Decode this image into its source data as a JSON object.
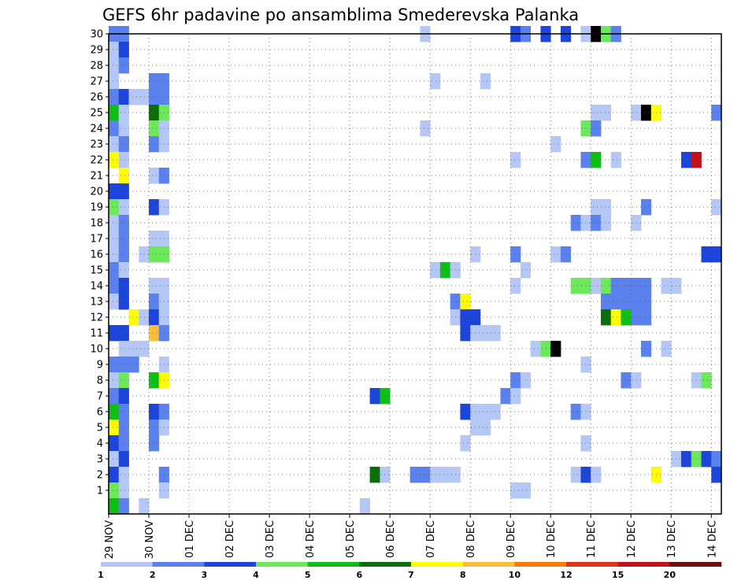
{
  "chart_data": {
    "type": "heatmap",
    "title": "GEFS 6hr padavine po ansamblima Smederevska Palanka",
    "xlabel": "",
    "ylabel": "",
    "x_tick_labels": [
      "29 NOV",
      "30 NOV",
      "01 DEC",
      "02 DEC",
      "03 DEC",
      "04 DEC",
      "05 DEC",
      "06 DEC",
      "07 DEC",
      "08 DEC",
      "09 DEC",
      "10 DEC",
      "11 DEC",
      "12 DEC",
      "13 DEC",
      "14 DEC"
    ],
    "y_tick_labels": [
      "1",
      "2",
      "3",
      "4",
      "5",
      "6",
      "7",
      "8",
      "9",
      "10",
      "11",
      "12",
      "13",
      "14",
      "15",
      "16",
      "17",
      "18",
      "19",
      "20",
      "21",
      "22",
      "23",
      "24",
      "25",
      "26",
      "27",
      "28",
      "29",
      "30"
    ],
    "x_range_steps": [
      0,
      61
    ],
    "y_range_members": [
      0,
      30
    ],
    "steps_per_day": 4,
    "grid": "dotted",
    "legend": {
      "placement": "bottom",
      "labels": [
        "1",
        "2",
        "3",
        "4",
        "5",
        "6",
        "7",
        "8",
        "10",
        "12",
        "15",
        "20"
      ],
      "colors": [
        "#b5c7f5",
        "#5b82ec",
        "#1d45dc",
        "#6de85a",
        "#0fbe16",
        "#0b6e0b",
        "#fcfc09",
        "#fcbd3c",
        "#fc7c0a",
        "#e03416",
        "#c0101c",
        "#6e0a0a"
      ]
    },
    "cells": [
      [
        0,
        30,
        2
      ],
      [
        1,
        30,
        2
      ],
      [
        31,
        30,
        1
      ],
      [
        40,
        30,
        3
      ],
      [
        41,
        30,
        2
      ],
      [
        43,
        30,
        3
      ],
      [
        45,
        30,
        3
      ],
      [
        47,
        30,
        1
      ],
      [
        48,
        30,
        14
      ],
      [
        49,
        30,
        4
      ],
      [
        50,
        30,
        2
      ],
      [
        0,
        29,
        1
      ],
      [
        1,
        29,
        3
      ],
      [
        0,
        28,
        1
      ],
      [
        1,
        28,
        2
      ],
      [
        0,
        27,
        1
      ],
      [
        4,
        27,
        2
      ],
      [
        5,
        27,
        2
      ],
      [
        32,
        27,
        1
      ],
      [
        37,
        27,
        1
      ],
      [
        0,
        26,
        2
      ],
      [
        1,
        26,
        3
      ],
      [
        2,
        26,
        1
      ],
      [
        3,
        26,
        1
      ],
      [
        4,
        26,
        2
      ],
      [
        5,
        26,
        2
      ],
      [
        0,
        25,
        5
      ],
      [
        1,
        25,
        1
      ],
      [
        4,
        25,
        6
      ],
      [
        5,
        25,
        4
      ],
      [
        48,
        25,
        1
      ],
      [
        49,
        25,
        1
      ],
      [
        52,
        25,
        1
      ],
      [
        53,
        25,
        13
      ],
      [
        54,
        25,
        7
      ],
      [
        60,
        25,
        2
      ],
      [
        0,
        24,
        2
      ],
      [
        1,
        24,
        1
      ],
      [
        4,
        24,
        4
      ],
      [
        5,
        24,
        1
      ],
      [
        31,
        24,
        1
      ],
      [
        47,
        24,
        4
      ],
      [
        48,
        24,
        2
      ],
      [
        0,
        23,
        1
      ],
      [
        1,
        23,
        2
      ],
      [
        4,
        23,
        2
      ],
      [
        5,
        23,
        1
      ],
      [
        44,
        23,
        1
      ],
      [
        0,
        22,
        7
      ],
      [
        1,
        22,
        1
      ],
      [
        40,
        22,
        1
      ],
      [
        47,
        22,
        2
      ],
      [
        48,
        22,
        5
      ],
      [
        50,
        22,
        1
      ],
      [
        57,
        22,
        3
      ],
      [
        58,
        22,
        11
      ],
      [
        1,
        21,
        7
      ],
      [
        4,
        21,
        1
      ],
      [
        5,
        21,
        2
      ],
      [
        0,
        20,
        3
      ],
      [
        1,
        20,
        3
      ],
      [
        0,
        19,
        4
      ],
      [
        1,
        19,
        1
      ],
      [
        4,
        19,
        3
      ],
      [
        5,
        19,
        1
      ],
      [
        48,
        19,
        1
      ],
      [
        49,
        19,
        1
      ],
      [
        53,
        19,
        2
      ],
      [
        60,
        19,
        1
      ],
      [
        0,
        18,
        1
      ],
      [
        1,
        18,
        2
      ],
      [
        46,
        18,
        2
      ],
      [
        47,
        18,
        1
      ],
      [
        48,
        18,
        2
      ],
      [
        49,
        18,
        1
      ],
      [
        52,
        18,
        1
      ],
      [
        0,
        17,
        1
      ],
      [
        1,
        17,
        2
      ],
      [
        4,
        17,
        1
      ],
      [
        5,
        17,
        1
      ],
      [
        0,
        16,
        1
      ],
      [
        1,
        16,
        2
      ],
      [
        3,
        16,
        1
      ],
      [
        4,
        16,
        4
      ],
      [
        5,
        16,
        4
      ],
      [
        36,
        16,
        1
      ],
      [
        40,
        16,
        2
      ],
      [
        44,
        16,
        1
      ],
      [
        45,
        16,
        2
      ],
      [
        59,
        16,
        3
      ],
      [
        60,
        16,
        3
      ],
      [
        0,
        15,
        2
      ],
      [
        1,
        15,
        1
      ],
      [
        32,
        15,
        1
      ],
      [
        33,
        15,
        5
      ],
      [
        34,
        15,
        1
      ],
      [
        41,
        15,
        1
      ],
      [
        0,
        14,
        2
      ],
      [
        1,
        14,
        3
      ],
      [
        4,
        14,
        1
      ],
      [
        5,
        14,
        1
      ],
      [
        40,
        14,
        1
      ],
      [
        46,
        14,
        4
      ],
      [
        47,
        14,
        4
      ],
      [
        48,
        14,
        1
      ],
      [
        49,
        14,
        4
      ],
      [
        50,
        14,
        2
      ],
      [
        51,
        14,
        2
      ],
      [
        52,
        14,
        2
      ],
      [
        53,
        14,
        2
      ],
      [
        55,
        14,
        1
      ],
      [
        56,
        14,
        1
      ],
      [
        0,
        13,
        1
      ],
      [
        1,
        13,
        3
      ],
      [
        4,
        13,
        2
      ],
      [
        5,
        13,
        1
      ],
      [
        34,
        13,
        2
      ],
      [
        35,
        13,
        7
      ],
      [
        49,
        13,
        2
      ],
      [
        50,
        13,
        2
      ],
      [
        51,
        13,
        2
      ],
      [
        52,
        13,
        2
      ],
      [
        53,
        13,
        2
      ],
      [
        2,
        12,
        7
      ],
      [
        3,
        12,
        1
      ],
      [
        4,
        12,
        3
      ],
      [
        5,
        12,
        1
      ],
      [
        34,
        12,
        1
      ],
      [
        35,
        12,
        3
      ],
      [
        36,
        12,
        3
      ],
      [
        49,
        12,
        6
      ],
      [
        50,
        12,
        7
      ],
      [
        51,
        12,
        5
      ],
      [
        52,
        12,
        2
      ],
      [
        53,
        12,
        2
      ],
      [
        0,
        11,
        3
      ],
      [
        1,
        11,
        3
      ],
      [
        4,
        11,
        8
      ],
      [
        5,
        11,
        2
      ],
      [
        35,
        11,
        3
      ],
      [
        36,
        11,
        1
      ],
      [
        37,
        11,
        1
      ],
      [
        38,
        11,
        1
      ],
      [
        1,
        10,
        1
      ],
      [
        2,
        10,
        1
      ],
      [
        3,
        10,
        1
      ],
      [
        42,
        10,
        1
      ],
      [
        43,
        10,
        4
      ],
      [
        44,
        10,
        13
      ],
      [
        53,
        10,
        2
      ],
      [
        55,
        10,
        1
      ],
      [
        0,
        9,
        2
      ],
      [
        1,
        9,
        2
      ],
      [
        2,
        9,
        2
      ],
      [
        5,
        9,
        1
      ],
      [
        47,
        9,
        1
      ],
      [
        0,
        8,
        1
      ],
      [
        1,
        8,
        4
      ],
      [
        4,
        8,
        5
      ],
      [
        5,
        8,
        7
      ],
      [
        40,
        8,
        2
      ],
      [
        41,
        8,
        1
      ],
      [
        51,
        8,
        2
      ],
      [
        52,
        8,
        1
      ],
      [
        58,
        8,
        1
      ],
      [
        59,
        8,
        4
      ],
      [
        0,
        7,
        2
      ],
      [
        1,
        7,
        3
      ],
      [
        26,
        7,
        3
      ],
      [
        27,
        7,
        5
      ],
      [
        39,
        7,
        2
      ],
      [
        40,
        7,
        1
      ],
      [
        0,
        6,
        5
      ],
      [
        1,
        6,
        2
      ],
      [
        4,
        6,
        3
      ],
      [
        5,
        6,
        2
      ],
      [
        35,
        6,
        3
      ],
      [
        36,
        6,
        1
      ],
      [
        37,
        6,
        1
      ],
      [
        38,
        6,
        1
      ],
      [
        46,
        6,
        2
      ],
      [
        47,
        6,
        1
      ],
      [
        0,
        5,
        7
      ],
      [
        1,
        5,
        2
      ],
      [
        4,
        5,
        2
      ],
      [
        5,
        5,
        1
      ],
      [
        36,
        5,
        1
      ],
      [
        37,
        5,
        1
      ],
      [
        0,
        4,
        3
      ],
      [
        1,
        4,
        2
      ],
      [
        4,
        4,
        2
      ],
      [
        35,
        4,
        1
      ],
      [
        47,
        4,
        1
      ],
      [
        0,
        3,
        1
      ],
      [
        1,
        3,
        3
      ],
      [
        56,
        3,
        1
      ],
      [
        57,
        3,
        3
      ],
      [
        58,
        3,
        4
      ],
      [
        59,
        3,
        3
      ],
      [
        60,
        3,
        2
      ],
      [
        0,
        2,
        3
      ],
      [
        1,
        2,
        1
      ],
      [
        5,
        2,
        2
      ],
      [
        26,
        2,
        6
      ],
      [
        27,
        2,
        1
      ],
      [
        30,
        2,
        2
      ],
      [
        31,
        2,
        2
      ],
      [
        32,
        2,
        1
      ],
      [
        33,
        2,
        1
      ],
      [
        34,
        2,
        1
      ],
      [
        46,
        2,
        1
      ],
      [
        47,
        2,
        3
      ],
      [
        48,
        2,
        1
      ],
      [
        54,
        2,
        7
      ],
      [
        60,
        2,
        3
      ],
      [
        0,
        1,
        4
      ],
      [
        1,
        1,
        1
      ],
      [
        5,
        1,
        1
      ],
      [
        40,
        1,
        1
      ],
      [
        41,
        1,
        1
      ],
      [
        0,
        0,
        5
      ],
      [
        1,
        0,
        2
      ],
      [
        3,
        0,
        1
      ],
      [
        25,
        0,
        1
      ]
    ]
  }
}
